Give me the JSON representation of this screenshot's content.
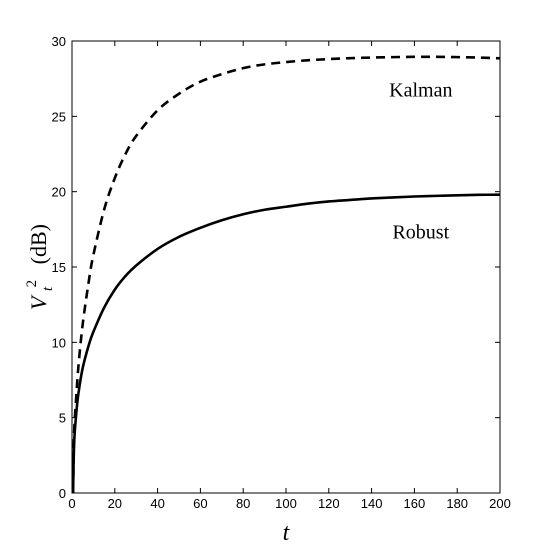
{
  "chart_data": {
    "type": "line",
    "title": "",
    "xlabel": "t",
    "ylabel_main": "V",
    "ylabel_sub": "t",
    "ylabel_sup": "2",
    "ylabel_unit": "(dB)",
    "xlim": [
      0,
      200
    ],
    "ylim": [
      0,
      30
    ],
    "xticks": [
      "0",
      "20",
      "40",
      "60",
      "80",
      "100",
      "120",
      "140",
      "160",
      "180",
      "200"
    ],
    "yticks": [
      "0",
      "5",
      "10",
      "15",
      "20",
      "25",
      "30"
    ],
    "grid": false,
    "annotations": [
      {
        "text": "Kalman",
        "x": 163,
        "y": 26.3
      },
      {
        "text": "Robust",
        "x": 163,
        "y": 16.9
      }
    ],
    "series": [
      {
        "style": "dashed",
        "color": "#000000",
        "x": [
          0.5,
          1,
          2,
          3,
          5,
          8,
          10,
          15,
          20,
          25,
          30,
          40,
          50,
          60,
          70,
          80,
          90,
          100,
          110,
          120,
          130,
          140,
          150,
          160,
          170,
          180,
          190,
          200
        ],
        "y": [
          0,
          4.0,
          6.4,
          8.4,
          11.2,
          14.2,
          15.8,
          18.8,
          20.9,
          22.5,
          23.7,
          25.4,
          26.5,
          27.3,
          27.8,
          28.2,
          28.45,
          28.6,
          28.72,
          28.8,
          28.86,
          28.9,
          28.93,
          28.95,
          28.95,
          28.93,
          28.9,
          28.85
        ]
      },
      {
        "style": "solid",
        "color": "#000000",
        "x": [
          0.5,
          1,
          2,
          3,
          5,
          8,
          10,
          15,
          20,
          25,
          30,
          40,
          50,
          60,
          70,
          80,
          90,
          100,
          110,
          120,
          130,
          140,
          150,
          160,
          170,
          180,
          190,
          200
        ],
        "y": [
          0,
          3.3,
          5.3,
          6.6,
          8.3,
          9.9,
          10.7,
          12.3,
          13.5,
          14.4,
          15.1,
          16.2,
          17.0,
          17.6,
          18.1,
          18.5,
          18.8,
          19.0,
          19.2,
          19.35,
          19.45,
          19.55,
          19.62,
          19.68,
          19.72,
          19.76,
          19.79,
          19.8
        ]
      }
    ]
  }
}
